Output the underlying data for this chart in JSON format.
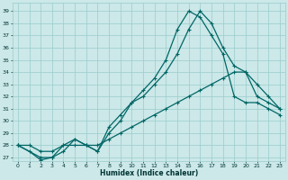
{
  "xlabel": "Humidex (Indice chaleur)",
  "bg_color": "#cce8e8",
  "grid_color": "#99cccc",
  "line_color": "#006666",
  "xticks": [
    0,
    1,
    2,
    3,
    4,
    5,
    6,
    7,
    8,
    9,
    10,
    11,
    12,
    13,
    14,
    15,
    16,
    17,
    18,
    19,
    20,
    21,
    22,
    23
  ],
  "yticks": [
    27,
    28,
    29,
    30,
    31,
    32,
    33,
    34,
    35,
    36,
    37,
    38,
    39
  ],
  "ylim": [
    26.7,
    39.7
  ],
  "xlim": [
    -0.5,
    23.5
  ],
  "line1_x": [
    0,
    1,
    2,
    3,
    4,
    5,
    6,
    7,
    8,
    9,
    10,
    11,
    12,
    13,
    14,
    15,
    16,
    17,
    18,
    19,
    20,
    21,
    22,
    23
  ],
  "line1_y": [
    28,
    27.5,
    26.8,
    27,
    27.5,
    28.5,
    28,
    27.5,
    29,
    30,
    31.5,
    32.5,
    33.5,
    35,
    37.5,
    39,
    38.5,
    37,
    35.5,
    32,
    31.5,
    31.5,
    31,
    30.5
  ],
  "line2_x": [
    0,
    2,
    3,
    4,
    5,
    6,
    7,
    8,
    9,
    10,
    11,
    12,
    13,
    14,
    15,
    16,
    17,
    18,
    19,
    20,
    21,
    22,
    23
  ],
  "line2_y": [
    28,
    27,
    27,
    28,
    28.5,
    28,
    27.5,
    29.5,
    30.5,
    31.5,
    32,
    33,
    34,
    35.5,
    37.5,
    39,
    38,
    36,
    34.5,
    34,
    32,
    31.5,
    31
  ],
  "line3_x": [
    0,
    1,
    2,
    3,
    4,
    5,
    6,
    7,
    8,
    9,
    10,
    11,
    12,
    13,
    14,
    15,
    16,
    17,
    18,
    19,
    20,
    21,
    22,
    23
  ],
  "line3_y": [
    28,
    28,
    27.5,
    27.5,
    28,
    28,
    28,
    28,
    28.5,
    29,
    29.5,
    30,
    30.5,
    31,
    31.5,
    32,
    32.5,
    33,
    33.5,
    34,
    34,
    33,
    32,
    31
  ]
}
